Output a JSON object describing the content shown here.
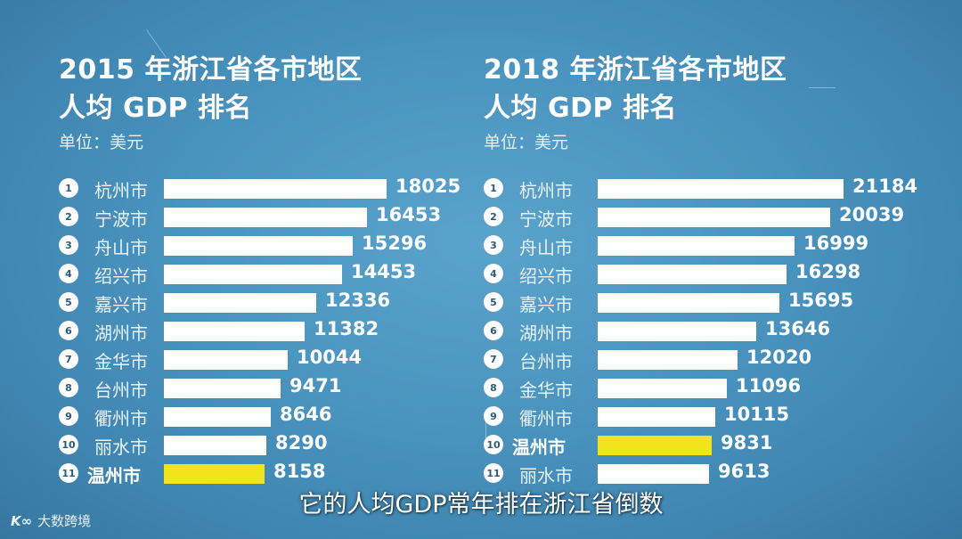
{
  "chart_data": [
    {
      "type": "bar",
      "orientation": "horizontal",
      "title_line1": "2015 年浙江省各市地区",
      "title_line2": "人均 GDP 排名",
      "unit": "单位：美元",
      "ranks": [
        "1",
        "2",
        "3",
        "4",
        "5",
        "6",
        "7",
        "8",
        "9",
        "10",
        "11"
      ],
      "categories": [
        "杭州市",
        "宁波市",
        "舟山市",
        "绍兴市",
        "嘉兴市",
        "湖州市",
        "金华市",
        "台州市",
        "衢州市",
        "丽水市",
        "温州市"
      ],
      "values": [
        18025,
        16453,
        15296,
        14453,
        12336,
        11382,
        10044,
        9471,
        8646,
        8290,
        8158
      ],
      "highlight": "温州市",
      "bar_color": "#ffffff",
      "highlight_color": "#f2e41c"
    },
    {
      "type": "bar",
      "orientation": "horizontal",
      "title_line1": "2018 年浙江省各市地区",
      "title_line2": "人均 GDP 排名",
      "unit": "单位：美元",
      "ranks": [
        "1",
        "2",
        "3",
        "4",
        "5",
        "6",
        "7",
        "8",
        "9",
        "10",
        "11"
      ],
      "categories": [
        "杭州市",
        "宁波市",
        "舟山市",
        "绍兴市",
        "嘉兴市",
        "湖州市",
        "台州市",
        "金华市",
        "衢州市",
        "温州市",
        "丽水市"
      ],
      "values": [
        21184,
        20039,
        16999,
        16298,
        15695,
        13646,
        12020,
        11096,
        10115,
        9831,
        9613
      ],
      "highlight": "温州市",
      "bar_color": "#ffffff",
      "highlight_color": "#f2e41c"
    }
  ],
  "subtitle": "它的人均GDP常年排在浙江省倒数",
  "watermark": {
    "mark": "K∞",
    "text": "大数跨境"
  }
}
